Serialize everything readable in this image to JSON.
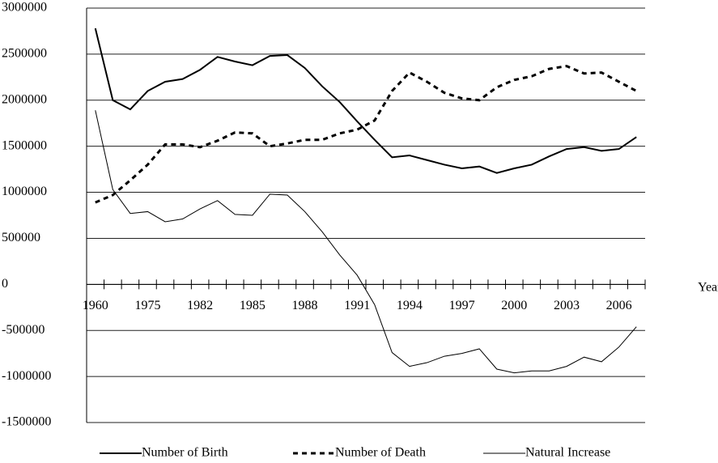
{
  "chart_data": {
    "type": "line",
    "x_label": "Year",
    "categories": [
      "1960",
      null,
      null,
      "1975",
      null,
      null,
      "1982",
      null,
      null,
      "1985",
      null,
      null,
      "1988",
      null,
      null,
      "1991",
      null,
      null,
      "1994",
      null,
      null,
      "1997",
      null,
      null,
      "2000",
      null,
      null,
      "2003",
      null,
      null,
      "2006",
      null
    ],
    "series": [
      {
        "name": "Number of Birth",
        "color": "#000000",
        "values": [
          2780000,
          2000000,
          1900000,
          2100000,
          2200000,
          2230000,
          2330000,
          2470000,
          2420000,
          2380000,
          2480000,
          2490000,
          2350000,
          2150000,
          1980000,
          1770000,
          1570000,
          1380000,
          1400000,
          1350000,
          1300000,
          1260000,
          1280000,
          1210000,
          1260000,
          1300000,
          1390000,
          1470000,
          1490000,
          1450000,
          1470000,
          1600000
        ]
      },
      {
        "name": "Number of Death",
        "color": "#000000",
        "values": [
          890000,
          970000,
          1130000,
          1300000,
          1520000,
          1520000,
          1490000,
          1560000,
          1650000,
          1640000,
          1500000,
          1530000,
          1570000,
          1570000,
          1640000,
          1680000,
          1780000,
          2100000,
          2300000,
          2200000,
          2080000,
          2020000,
          2000000,
          2140000,
          2220000,
          2260000,
          2340000,
          2370000,
          2290000,
          2300000,
          2200000,
          2100000
        ]
      },
      {
        "name": "Natural Increase",
        "color": "#000000",
        "values": [
          1890000,
          1030000,
          770000,
          790000,
          680000,
          710000,
          820000,
          910000,
          760000,
          750000,
          980000,
          970000,
          790000,
          570000,
          320000,
          100000,
          -220000,
          -740000,
          -890000,
          -850000,
          -780000,
          -750000,
          -700000,
          -920000,
          -960000,
          -940000,
          -940000,
          -890000,
          -790000,
          -840000,
          -680000,
          -460000
        ]
      }
    ],
    "ylim": [
      -1500000,
      3000000
    ],
    "yticks": [
      -1500000,
      -1000000,
      -500000,
      0,
      500000,
      1000000,
      1500000,
      2000000,
      2500000,
      3000000
    ],
    "grid": true
  }
}
